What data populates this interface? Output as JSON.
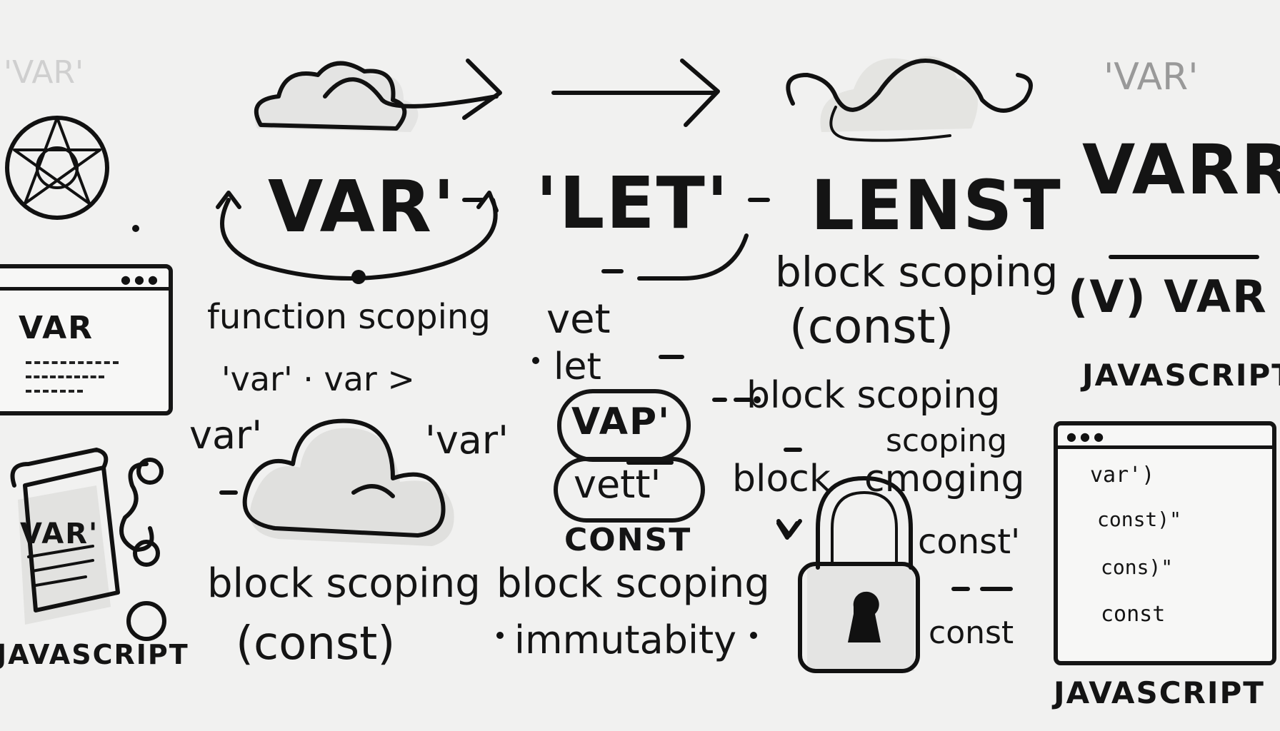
{
  "top_faint_left": "'VAR'",
  "top_faint_right": "'VAR'",
  "headline": {
    "var": "VAR'",
    "let": "'LET'",
    "lenst": "LENST",
    "varr": "VARR"
  },
  "left_panel": {
    "title": "VAR"
  },
  "scroll_label": "VAR'",
  "javascript_left": "JAVASCRIPT",
  "middle": {
    "function_scoping": "function scoping",
    "vet": "vet",
    "let": "let",
    "var_quote_var": "'var' · var >",
    "var_left": "var'",
    "var_right": "'var'",
    "vap_pill": "VAP'",
    "vett_pill": "vett'",
    "const_label": "CONST",
    "block_scoping_1": "block scoping",
    "block_scoping_2": "block scoping",
    "const_paren": "(const)",
    "immutabity": "immutabity"
  },
  "right_center": {
    "block_scoping_top": "block scoping",
    "const_paren": "(const)",
    "block_scoping_mid": "block scoping",
    "scoping": "scoping",
    "block": "block",
    "cmoging": "cmoging",
    "const_1": "const'",
    "const_2": "const"
  },
  "right_side": {
    "var_label": "(V) VAR",
    "javascript_top": "JAVASCRIPT",
    "code_lines": [
      "var')",
      "const)\"",
      "cons)\"",
      "const"
    ],
    "javascript_bottom": "JAVASCRIPT"
  }
}
